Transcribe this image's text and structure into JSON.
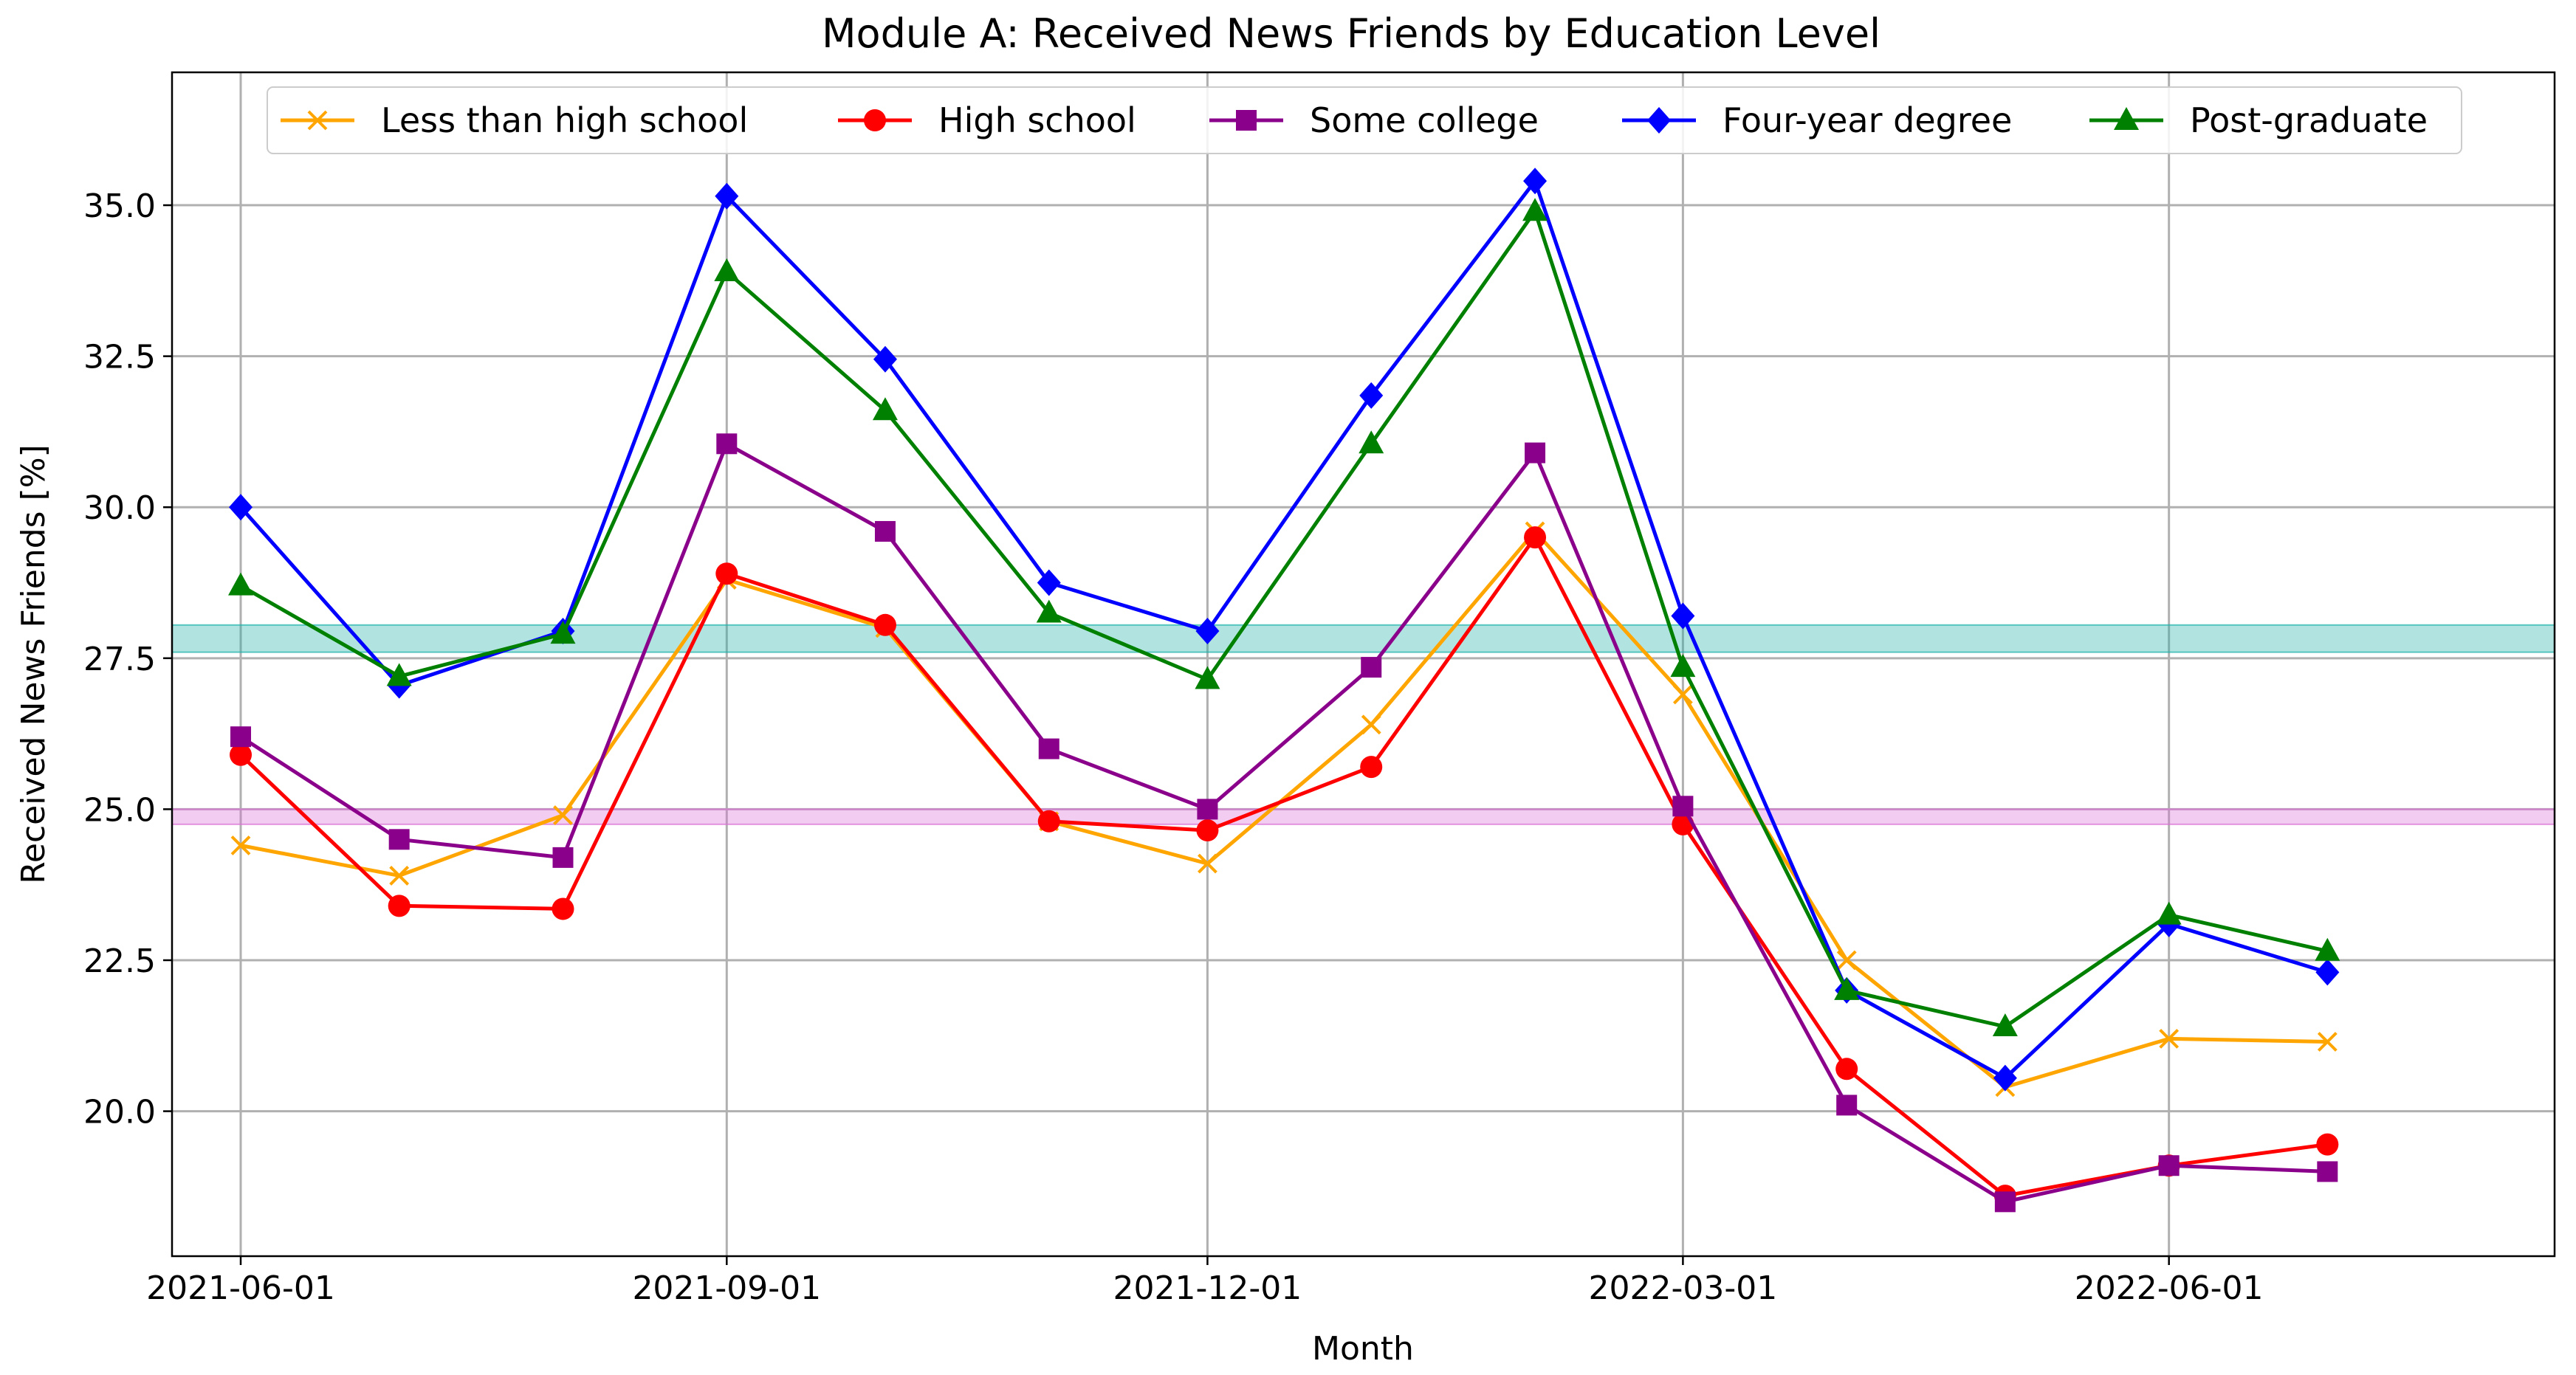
{
  "chart_data": {
    "type": "line",
    "title": "Module A: Received News Friends by Education Level",
    "xlabel": "Month",
    "ylabel": "Received News Friends [%]",
    "x": [
      "2021-06-01",
      "2021-07-01",
      "2021-08-01",
      "2021-09-01",
      "2021-10-01",
      "2021-11-01",
      "2021-12-01",
      "2022-01-01",
      "2022-02-01",
      "2022-03-01",
      "2022-04-01",
      "2022-05-01",
      "2022-06-01",
      "2022-07-01"
    ],
    "x_ticks": [
      "2021-06-01",
      "2021-09-01",
      "2021-12-01",
      "2022-03-01",
      "2022-06-01"
    ],
    "y_ticks": [
      "20.0",
      "22.5",
      "25.0",
      "27.5",
      "30.0",
      "32.5",
      "35.0"
    ],
    "xlim": [
      "2021-05-19",
      "2022-08-13"
    ],
    "ylim": [
      17.6,
      37.2
    ],
    "grid": true,
    "legend_position": "top, single row",
    "series": [
      {
        "name": "Less than high school",
        "color": "#ffa500",
        "marker": "x",
        "values": [
          24.4,
          23.9,
          24.9,
          28.8,
          28.0,
          24.8,
          24.1,
          26.4,
          29.6,
          26.9,
          22.5,
          20.4,
          21.2,
          21.15
        ]
      },
      {
        "name": "High school",
        "color": "#ff0000",
        "marker": "circle",
        "values": [
          25.9,
          23.4,
          23.35,
          28.9,
          28.05,
          24.8,
          24.65,
          25.7,
          29.5,
          24.75,
          20.7,
          18.6,
          19.1,
          19.45
        ]
      },
      {
        "name": "Some college",
        "color": "#8b008b",
        "marker": "square",
        "values": [
          26.2,
          24.5,
          24.2,
          31.05,
          29.6,
          26.0,
          25.0,
          27.35,
          30.9,
          25.05,
          20.1,
          18.5,
          19.1,
          19.0
        ]
      },
      {
        "name": "Four-year degree",
        "color": "#0000ff",
        "marker": "diamond",
        "values": [
          30.0,
          27.05,
          27.95,
          35.15,
          32.45,
          28.75,
          27.95,
          31.85,
          35.4,
          28.2,
          22.0,
          20.55,
          23.1,
          22.3
        ]
      },
      {
        "name": "Post-graduate",
        "color": "#008000",
        "marker": "triangle",
        "values": [
          28.7,
          27.2,
          27.9,
          33.9,
          31.6,
          28.25,
          27.15,
          31.05,
          34.9,
          27.35,
          22.0,
          21.4,
          23.25,
          22.65
        ]
      }
    ],
    "bands": [
      {
        "color": "#20b2aa",
        "y_from": 27.6,
        "y_to": 28.05
      },
      {
        "color": "#da70d6",
        "y_from": 24.75,
        "y_to": 25.0
      }
    ]
  }
}
